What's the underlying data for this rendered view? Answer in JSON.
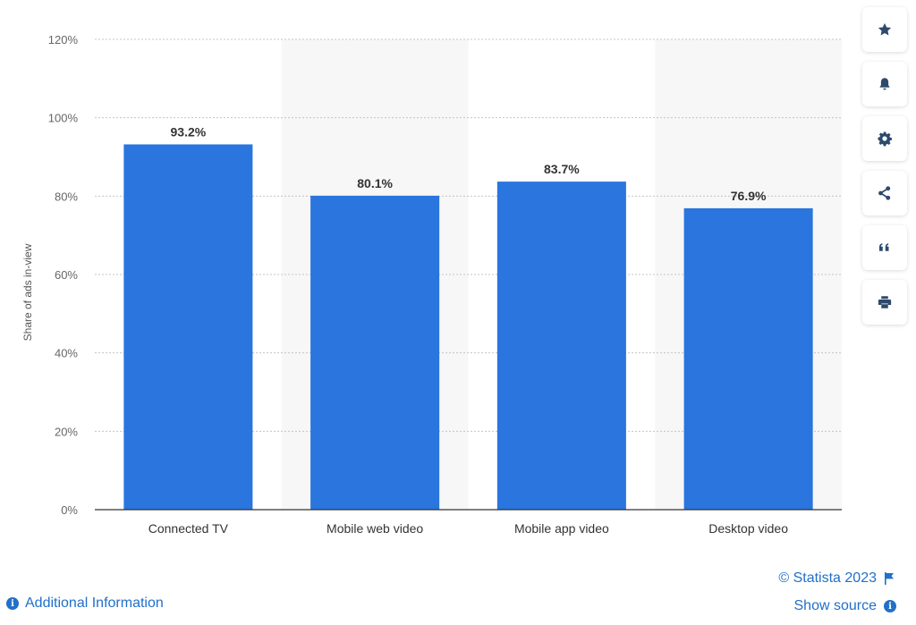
{
  "chart_data": {
    "type": "bar",
    "categories": [
      "Connected TV",
      "Mobile web video",
      "Mobile app video",
      "Desktop video"
    ],
    "values": [
      93.2,
      80.1,
      83.7,
      76.9
    ],
    "data_labels": [
      "93.2%",
      "80.1%",
      "83.7%",
      "76.9%"
    ],
    "ylabel": "Share of ads in-view",
    "ylim": [
      0,
      120
    ],
    "yticks": [
      0,
      20,
      40,
      60,
      80,
      100,
      120
    ],
    "ytick_labels": [
      "0%",
      "20%",
      "40%",
      "60%",
      "80%",
      "100%",
      "120%"
    ],
    "grid": true,
    "bar_color": "#2a75de",
    "alt_band_color": "#f7f7f7"
  },
  "toolbar": {
    "buttons": [
      {
        "name": "favorite-button",
        "icon": "star-icon"
      },
      {
        "name": "notification-button",
        "icon": "bell-icon"
      },
      {
        "name": "settings-button",
        "icon": "gear-icon"
      },
      {
        "name": "share-button",
        "icon": "share-icon"
      },
      {
        "name": "cite-button",
        "icon": "quote-icon"
      },
      {
        "name": "print-button",
        "icon": "print-icon"
      }
    ]
  },
  "footer": {
    "additional_info": "Additional Information",
    "copyright": "© Statista 2023",
    "show_source": "Show source"
  }
}
